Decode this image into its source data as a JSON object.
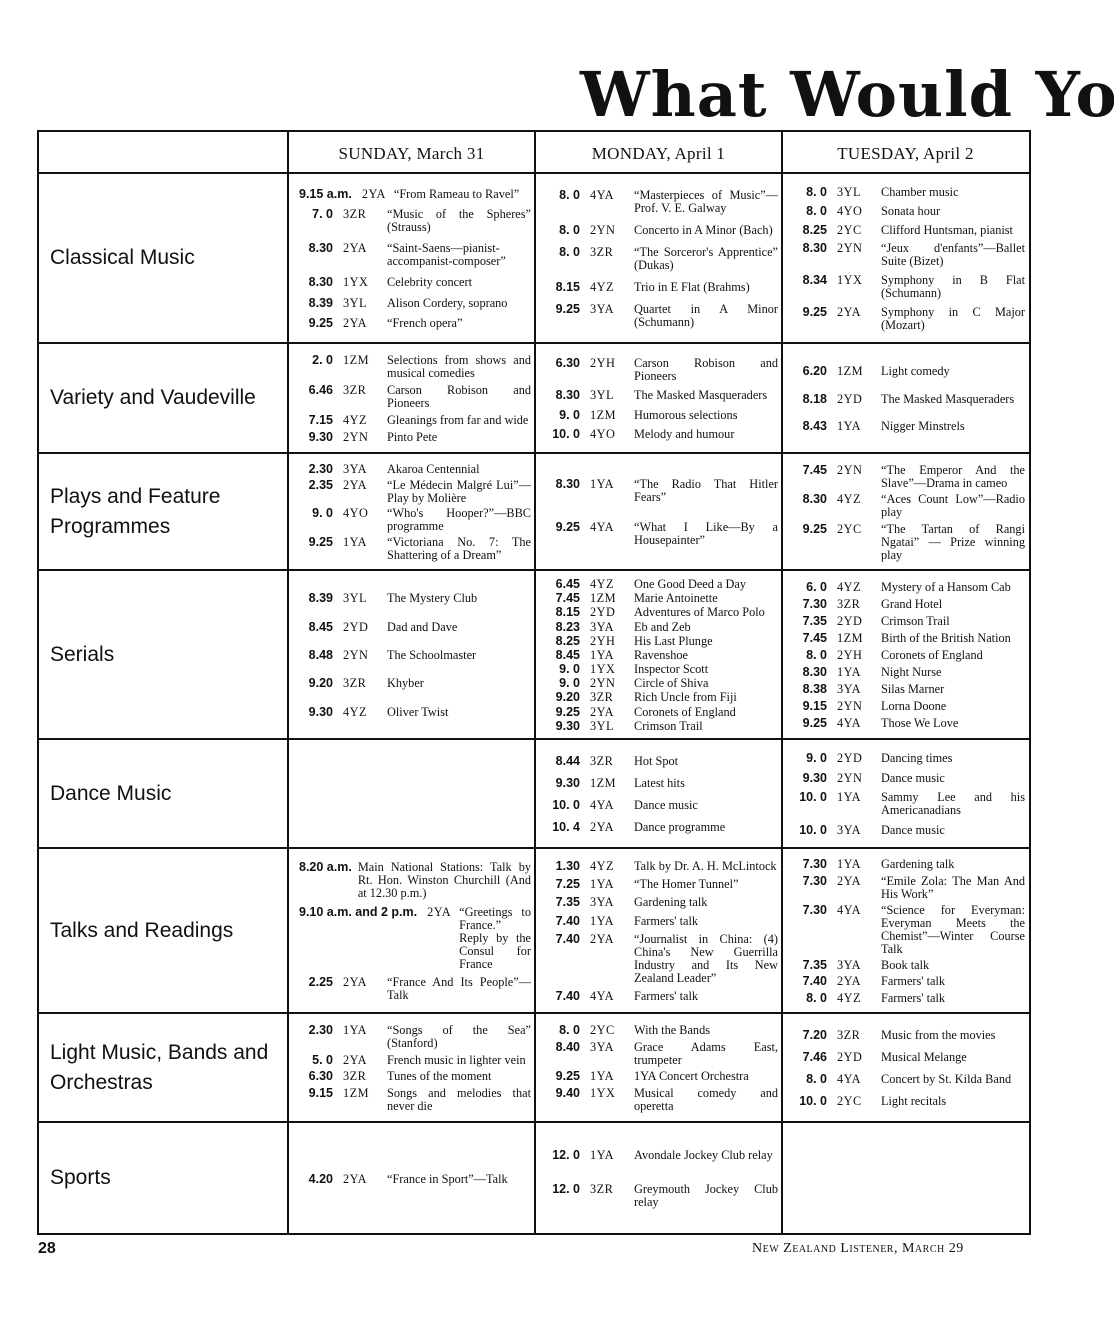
{
  "page_title": "What Would You",
  "columns": [
    "SUNDAY, March 31",
    "MONDAY, April 1",
    "TUESDAY, April 2"
  ],
  "rows": [
    {
      "category": "Classical Music",
      "height": 168,
      "days": [
        [
          [
            "9.15 a.m.",
            "2YA",
            "“From Rameau to Ravel”"
          ],
          [
            "7. 0",
            "3ZR",
            "“Music of the Spheres” (Strauss)"
          ],
          [
            "8.30",
            "2YA",
            "“Saint-Saens—pianist-accompanist-composer”"
          ],
          [
            "8.30",
            "1YX",
            "Celebrity concert"
          ],
          [
            "8.39",
            "3YL",
            "Alison Cordery, soprano"
          ],
          [
            "9.25",
            "2YA",
            "“French opera”"
          ]
        ],
        [
          [
            "8. 0",
            "4YA",
            "“Masterpieces of Music”—Prof. V. E. Galway"
          ],
          [
            "8. 0",
            "2YN",
            "Concerto in A Minor (Bach)"
          ],
          [
            "8. 0",
            "3ZR",
            "“The Sorceror's Apprentice” (Dukas)"
          ],
          [
            "8.15",
            "4YZ",
            "Trio in E Flat (Brahms)"
          ],
          [
            "9.25",
            "3YA",
            "Quartet in A Minor (Schumann)"
          ]
        ],
        [
          [
            "8. 0",
            "3YL",
            "Chamber music"
          ],
          [
            "8. 0",
            "4YO",
            "Sonata hour"
          ],
          [
            "8.25",
            "2YC",
            "Clifford Huntsman, pianist"
          ],
          [
            "8.30",
            "2YN",
            "“Jeux d'enfants”—Ballet Suite (Bizet)"
          ],
          [
            "8.34",
            "1YX",
            "Symphony in B Flat (Schumann)"
          ],
          [
            "9.25",
            "2YA",
            "Symphony in C Major (Mozart)"
          ]
        ]
      ]
    },
    {
      "category": "Variety and Vaudeville",
      "height": 108,
      "days": [
        [
          [
            "2. 0",
            "1ZM",
            "Selections from shows and musical comedies"
          ],
          [
            "6.46",
            "3ZR",
            "Carson Robison and Pioneers"
          ],
          [
            "7.15",
            "4YZ",
            "Gleanings from far and wide"
          ],
          [
            "9.30",
            "2YN",
            "Pinto Pete"
          ]
        ],
        [
          [
            "6.30",
            "2YH",
            "Carson Robison and Pioneers"
          ],
          [
            "8.30",
            "3YL",
            "The Masked Masqueraders"
          ],
          [
            "9. 0",
            "1ZM",
            "Humorous selections"
          ],
          [
            "10. 0",
            "4YO",
            "Melody and humour"
          ]
        ],
        [
          [
            "6.20",
            "1ZM",
            "Light comedy"
          ],
          [
            "8.18",
            "2YD",
            "The Masked Masqueraders"
          ],
          [
            "8.43",
            "1YA",
            "Nigger Minstrels"
          ]
        ]
      ]
    },
    {
      "category": "Plays and Feature Programmes",
      "height": 115,
      "days": [
        [
          [
            "2.30",
            "3YA",
            "Akaroa Centennial"
          ],
          [
            "2.35",
            "2YA",
            "“Le Médecin Malgré Lui”—Play by Molière"
          ],
          [
            "9. 0",
            "4YO",
            "“Who's Hooper?”—BBC programme"
          ],
          [
            "9.25",
            "1YA",
            "“Victoriana No. 7: The Shattering of a Dream”"
          ]
        ],
        [
          [
            "8.30",
            "1YA",
            "“The Radio That Hitler Fears”"
          ],
          [
            "9.25",
            "4YA",
            "“What I Like—By a Housepainter”"
          ]
        ],
        [
          [
            "7.45",
            "2YN",
            "“The Emperor And the Slave”—Drama in cameo"
          ],
          [
            "8.30",
            "4YZ",
            "“Aces Count Low”—Radio play"
          ],
          [
            "9.25",
            "2YC",
            "“The Tartan of Rangi Ngatai” — Prize winning play"
          ]
        ]
      ]
    },
    {
      "category": "Serials",
      "height": 167,
      "days": [
        [
          [
            "8.39",
            "3YL",
            "The Mystery Club"
          ],
          [
            "8.45",
            "2YD",
            "Dad and Dave"
          ],
          [
            "8.48",
            "2YN",
            "The Schoolmaster"
          ],
          [
            "9.20",
            "3ZR",
            "Khyber"
          ],
          [
            "9.30",
            "4YZ",
            "Oliver Twist"
          ]
        ],
        [
          [
            "6.45",
            "4YZ",
            "One Good Deed a Day"
          ],
          [
            "7.45",
            "1ZM",
            "Marie Antoinette"
          ],
          [
            "8.15",
            "2YD",
            "Adventures of Marco Polo"
          ],
          [
            "8.23",
            "3YA",
            "Eb and Zeb"
          ],
          [
            "8.25",
            "2YH",
            "His Last Plunge"
          ],
          [
            "8.45",
            "1YA",
            "Ravenshoe"
          ],
          [
            "9. 0",
            "1YX",
            "Inspector Scott"
          ],
          [
            "9. 0",
            "2YN",
            "Circle of Shiva"
          ],
          [
            "9.20",
            "3ZR",
            "Rich Uncle from Fiji"
          ],
          [
            "9.25",
            "2YA",
            "Coronets of England"
          ],
          [
            "9.30",
            "3YL",
            "Crimson Trail"
          ]
        ],
        [
          [
            "6. 0",
            "4YZ",
            "Mystery of a Hansom Cab"
          ],
          [
            "7.30",
            "3ZR",
            "Grand Hotel"
          ],
          [
            "7.35",
            "2YD",
            "Crimson Trail"
          ],
          [
            "7.45",
            "1ZM",
            "Birth of the British Nation"
          ],
          [
            "8. 0",
            "2YH",
            "Coronets of England"
          ],
          [
            "8.30",
            "1YA",
            "Night Nurse"
          ],
          [
            "8.38",
            "3YA",
            "Silas Marner"
          ],
          [
            "9.15",
            "2YN",
            "Lorna Doone"
          ],
          [
            "9.25",
            "4YA",
            "Those We Love"
          ]
        ]
      ]
    },
    {
      "category": "Dance Music",
      "height": 107,
      "days": [
        [],
        [
          [
            "8.44",
            "3ZR",
            "Hot Spot"
          ],
          [
            "9.30",
            "1ZM",
            "Latest hits"
          ],
          [
            "10. 0",
            "4YA",
            "Dance music"
          ],
          [
            "10. 4",
            "2YA",
            "Dance programme"
          ]
        ],
        [
          [
            "9. 0",
            "2YD",
            "Dancing times"
          ],
          [
            "9.30",
            "2YN",
            "Dance music"
          ],
          [
            "10. 0",
            "1YA",
            "Sammy Lee and his Americanadians"
          ],
          [
            "10. 0",
            "3YA",
            "Dance music"
          ]
        ]
      ]
    },
    {
      "category": "Talks and Readings",
      "height": 163,
      "days": [
        [
          [
            "8.20 a.m.",
            "",
            "Main National Stations: Talk by Rt. Hon. Winston Churchill (And at 12.30 p.m.)"
          ],
          [
            "9.10 a.m. and 2 p.m.",
            "2YA",
            "“Greetings to France.” Reply by the Consul for France"
          ],
          [
            "2.25",
            "2YA",
            "“France And Its People”—Talk"
          ]
        ],
        [
          [
            "1.30",
            "4YZ",
            "Talk by Dr. A. H. McLintock"
          ],
          [
            "7.25",
            "1YA",
            "“The Homer Tunnel”"
          ],
          [
            "7.35",
            "3YA",
            "Gardening talk"
          ],
          [
            "7.40",
            "1YA",
            "Farmers' talk"
          ],
          [
            "7.40",
            "2YA",
            "“Journalist in China: (4) China's New Guerrilla Industry and Its New Zealand Leader”"
          ],
          [
            "7.40",
            "4YA",
            "Farmers' talk"
          ]
        ],
        [
          [
            "7.30",
            "1YA",
            "Gardening talk"
          ],
          [
            "7.30",
            "2YA",
            "“Emile Zola: The Man And His Work”"
          ],
          [
            "7.30",
            "4YA",
            "“Science for Everyman: Everyman Meets the Chemist”—Winter Course Talk"
          ],
          [
            "7.35",
            "3YA",
            "Book talk"
          ],
          [
            "7.40",
            "2YA",
            "Farmers' talk"
          ],
          [
            "8. 0",
            "4YZ",
            "Farmers' talk"
          ]
        ]
      ]
    },
    {
      "category": "Light Music, Bands and Orchestras",
      "height": 107,
      "days": [
        [
          [
            "2.30",
            "1YA",
            "“Songs of the Sea” (Stanford)"
          ],
          [
            "5. 0",
            "2YA",
            "French music in lighter vein"
          ],
          [
            "6.30",
            "3ZR",
            "Tunes of the moment"
          ],
          [
            "9.15",
            "1ZM",
            "Songs and melodies that never die"
          ]
        ],
        [
          [
            "8. 0",
            "2YC",
            "With the Bands"
          ],
          [
            "8.40",
            "3YA",
            "Grace Adams East, trumpeter"
          ],
          [
            "9.25",
            "1YA",
            "1YA Concert Orchestra"
          ],
          [
            "9.40",
            "1YX",
            "Musical comedy and operetta"
          ]
        ],
        [
          [
            "7.20",
            "3ZR",
            "Music from the movies"
          ],
          [
            "7.46",
            "2YD",
            "Musical Melange"
          ],
          [
            "8. 0",
            "4YA",
            "Concert by St. Kilda Band"
          ],
          [
            "10. 0",
            "2YC",
            "Light recitals"
          ]
        ]
      ]
    },
    {
      "category": "Sports",
      "height": 110,
      "days": [
        [
          [
            "4.20",
            "2YA",
            "“France in Sport”—Talk"
          ]
        ],
        [
          [
            "12. 0",
            "1YA",
            "Avondale Jockey Club relay"
          ],
          [
            "12. 0",
            "3ZR",
            "Greymouth Jockey Club relay"
          ]
        ],
        []
      ]
    }
  ],
  "footer": {
    "page_number": "28",
    "publication": "New Zealand Listener, March 29"
  }
}
